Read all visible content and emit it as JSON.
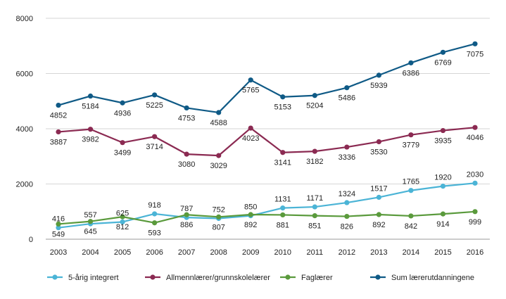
{
  "chart_data": {
    "type": "line",
    "title": "",
    "xlabel": "",
    "ylabel": "",
    "x": [
      "2003",
      "2004",
      "2005",
      "2006",
      "2007",
      "2008",
      "2009",
      "2010",
      "2011",
      "2012",
      "2013",
      "2014",
      "2015",
      "2016"
    ],
    "ylim": [
      0,
      8000
    ],
    "yticks": [
      "0",
      "2000",
      "4000",
      "6000",
      "8000"
    ],
    "grid": "horizontal",
    "legend_position": "bottom",
    "series": [
      {
        "name": "5-årig integrert",
        "color": "#4bb4d6",
        "values": [
          416,
          557,
          625,
          918,
          787,
          752,
          850,
          1131,
          1171,
          1324,
          1517,
          1765,
          1920,
          2030
        ],
        "labels": [
          "416",
          "557",
          "625",
          "918",
          "787",
          "752",
          "850",
          "1131",
          "1171",
          "1324",
          "1517",
          "1765",
          "1920",
          "2030"
        ],
        "label_position": "above"
      },
      {
        "name": "Allmennlærer/grunnskolelærer",
        "color": "#8b2a52",
        "values": [
          3887,
          3982,
          3499,
          3714,
          3080,
          3029,
          4023,
          3141,
          3182,
          3336,
          3530,
          3779,
          3935,
          4046
        ],
        "labels": [
          "3887",
          "3982",
          "3499",
          "3714",
          "3080",
          "3029",
          "4023",
          "3141",
          "3182",
          "3336",
          "3530",
          "3779",
          "3935",
          "4046"
        ],
        "label_position": "below"
      },
      {
        "name": "Faglærer",
        "color": "#5a9a3c",
        "values": [
          549,
          645,
          812,
          593,
          886,
          807,
          892,
          881,
          851,
          826,
          892,
          842,
          914,
          999
        ],
        "labels": [
          "549",
          "645",
          "812",
          "593",
          "886",
          "807",
          "892",
          "881",
          "851",
          "826",
          "892",
          "842",
          "914",
          "999"
        ],
        "label_position": "below"
      },
      {
        "name": "Sum lærerutdanningene",
        "color": "#0f5a86",
        "values": [
          4852,
          5184,
          4936,
          5225,
          4753,
          4588,
          5765,
          5153,
          5204,
          5486,
          5939,
          6386,
          6769,
          7075
        ],
        "labels": [
          "4852",
          "5184",
          "4936",
          "5225",
          "4753",
          "4588",
          "5765",
          "5153",
          "5204",
          "5486",
          "5939",
          "6386",
          "6769",
          "7075"
        ],
        "label_position": "below"
      }
    ]
  }
}
